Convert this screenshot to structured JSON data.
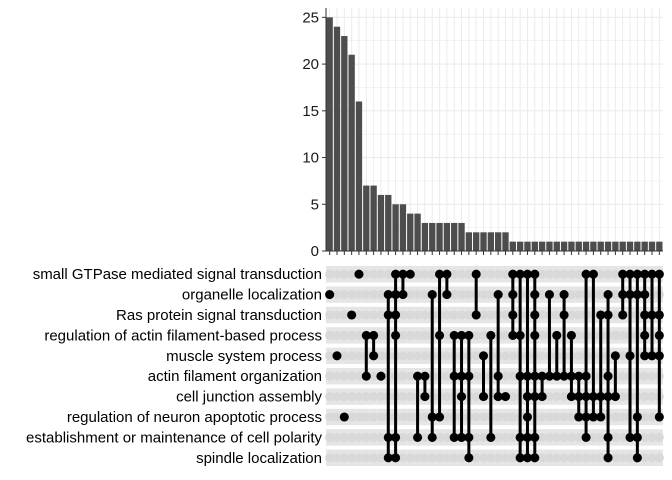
{
  "chart_data": {
    "type": "bar",
    "subtype": "upset",
    "title": "",
    "xlabel": "",
    "ylabel": "",
    "ylim": [
      0,
      26
    ],
    "y_ticks": [
      0,
      5,
      10,
      15,
      20,
      25
    ],
    "grid": true,
    "sets": [
      "small GTPase mediated signal transduction",
      "organelle localization",
      "Ras protein signal transduction",
      "regulation of actin filament-based process",
      "muscle system process",
      "actin filament organization",
      "cell junction assembly",
      "regulation of neuron apoptotic process",
      "establishment or maintenance of cell polarity",
      "spindle localization"
    ],
    "intersections": [
      {
        "size": 25,
        "members": [
          1
        ]
      },
      {
        "size": 24,
        "members": [
          4
        ]
      },
      {
        "size": 23,
        "members": [
          7
        ]
      },
      {
        "size": 21,
        "members": [
          2
        ]
      },
      {
        "size": 16,
        "members": [
          0
        ]
      },
      {
        "size": 7,
        "members": [
          3,
          5
        ]
      },
      {
        "size": 7,
        "members": [
          3,
          4
        ]
      },
      {
        "size": 6,
        "members": [
          5
        ]
      },
      {
        "size": 6,
        "members": [
          1,
          2,
          8,
          9
        ]
      },
      {
        "size": 5,
        "members": [
          0,
          1,
          2,
          3,
          8,
          9
        ]
      },
      {
        "size": 5,
        "members": [
          0,
          1
        ]
      },
      {
        "size": 4,
        "members": [
          0
        ]
      },
      {
        "size": 4,
        "members": [
          5,
          8
        ]
      },
      {
        "size": 3,
        "members": [
          5,
          6
        ]
      },
      {
        "size": 3,
        "members": [
          1,
          7,
          8
        ]
      },
      {
        "size": 3,
        "members": [
          0,
          3,
          7
        ]
      },
      {
        "size": 3,
        "members": [
          0,
          1
        ]
      },
      {
        "size": 3,
        "members": [
          3,
          5,
          8
        ]
      },
      {
        "size": 3,
        "members": [
          3,
          5,
          6,
          8
        ]
      },
      {
        "size": 2,
        "members": [
          3,
          5,
          8,
          9
        ]
      },
      {
        "size": 2,
        "members": [
          0,
          2
        ]
      },
      {
        "size": 2,
        "members": [
          4,
          6
        ]
      },
      {
        "size": 2,
        "members": [
          3,
          8
        ]
      },
      {
        "size": 2,
        "members": [
          1,
          5,
          6
        ]
      },
      {
        "size": 2,
        "members": [
          6
        ]
      },
      {
        "size": 1,
        "members": [
          0,
          1,
          2,
          3
        ]
      },
      {
        "size": 1,
        "members": [
          0,
          3,
          5,
          8,
          9
        ]
      },
      {
        "size": 1,
        "members": [
          0,
          5,
          6,
          7,
          8,
          9
        ]
      },
      {
        "size": 1,
        "members": [
          0,
          1,
          2,
          3,
          5,
          6,
          8,
          9
        ]
      },
      {
        "size": 1,
        "members": [
          5,
          6
        ]
      },
      {
        "size": 1,
        "members": [
          1,
          5
        ]
      },
      {
        "size": 1,
        "members": [
          3,
          5
        ]
      },
      {
        "size": 1,
        "members": [
          1,
          2,
          5
        ]
      },
      {
        "size": 1,
        "members": [
          3,
          5,
          6
        ]
      },
      {
        "size": 1,
        "members": [
          5,
          6,
          7
        ]
      },
      {
        "size": 1,
        "members": [
          0,
          5,
          6,
          7,
          8
        ]
      },
      {
        "size": 1,
        "members": [
          0,
          6,
          7
        ]
      },
      {
        "size": 1,
        "members": [
          2,
          6,
          7
        ]
      },
      {
        "size": 1,
        "members": [
          1,
          2,
          5,
          6,
          8,
          9
        ]
      },
      {
        "size": 1,
        "members": [
          4,
          6
        ]
      },
      {
        "size": 1,
        "members": [
          0,
          1,
          2
        ]
      },
      {
        "size": 1,
        "members": [
          0,
          1,
          4,
          8
        ]
      },
      {
        "size": 1,
        "members": [
          0,
          1,
          7,
          8,
          9
        ]
      },
      {
        "size": 1,
        "members": [
          0,
          1,
          2,
          3,
          4
        ]
      },
      {
        "size": 1,
        "members": [
          0,
          2,
          4
        ]
      },
      {
        "size": 1,
        "members": [
          0,
          2,
          3,
          4,
          7
        ]
      }
    ],
    "colors": {
      "bar": "#4d4d4d",
      "dot_on": "#000000",
      "dot_off": "#d9d9d9",
      "stripe": "#e5e5e5",
      "grid": "#ebebeb",
      "axis": "#333333"
    }
  }
}
